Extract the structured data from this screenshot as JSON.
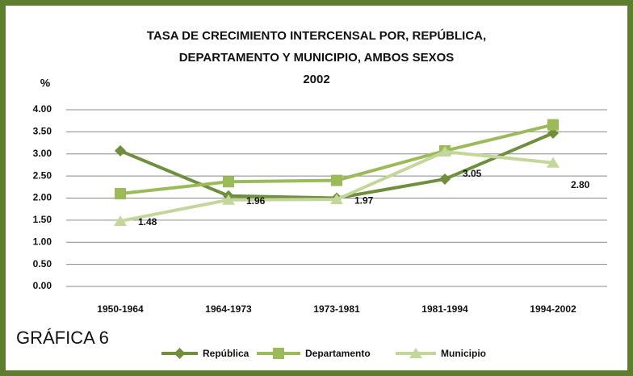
{
  "chart_data": {
    "type": "line",
    "title": [
      "TASA DE CRECIMIENTO INTERCENSAL POR, REPÚBLICA,",
      "DEPARTAMENTO Y MUNICIPIO, AMBOS SEXOS",
      "2002"
    ],
    "y_label": "%",
    "annotation": "GRÁFICA 6",
    "categories": [
      "1950-1964",
      "1964-1973",
      "1973-1981",
      "1981-1994",
      "1994-2002"
    ],
    "series": [
      {
        "name": "República",
        "color": "#6f8f3c",
        "marker": "diamond",
        "values": [
          3.07,
          2.05,
          2.0,
          2.43,
          3.47
        ]
      },
      {
        "name": "Departamento",
        "color": "#9bbb59",
        "marker": "square",
        "values": [
          2.1,
          2.37,
          2.4,
          3.07,
          3.66
        ]
      },
      {
        "name": "Municipio",
        "color": "#c4d79b",
        "marker": "triangle",
        "values": [
          1.48,
          1.96,
          1.97,
          3.05,
          2.8
        ],
        "value_labels": [
          "1.48",
          "1.96",
          "1.97",
          "3.05",
          "2.80"
        ]
      }
    ],
    "ylim": [
      0,
      4
    ],
    "yticks": [
      {
        "value": 0,
        "label": "0.00"
      },
      {
        "value": 0.5,
        "label": "0.50"
      },
      {
        "value": 1,
        "label": "1.00"
      },
      {
        "value": 1.5,
        "label": "1.50"
      },
      {
        "value": 2,
        "label": "2.00"
      },
      {
        "value": 2.5,
        "label": "2.50"
      },
      {
        "value": 3,
        "label": "3.00"
      },
      {
        "value": 3.5,
        "label": "3.50"
      },
      {
        "value": 4,
        "label": "4.00"
      }
    ],
    "grid": true,
    "legend": "bottom"
  }
}
